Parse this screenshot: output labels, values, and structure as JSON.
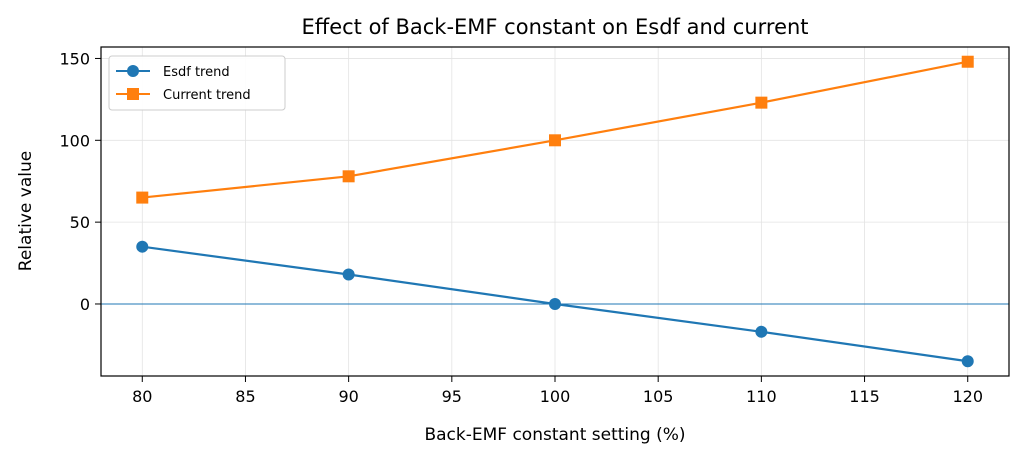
{
  "chart_data": {
    "type": "line",
    "title": "Effect of Back-EMF constant on Esdf and current",
    "xlabel": "Back-EMF constant setting (%)",
    "ylabel": "Relative value",
    "x": [
      80,
      90,
      100,
      110,
      120
    ],
    "xlim": [
      78,
      122
    ],
    "ylim": [
      -44,
      157
    ],
    "xticks": [
      80,
      85,
      90,
      95,
      100,
      105,
      110,
      115,
      120
    ],
    "yticks": [
      0,
      50,
      100,
      150
    ],
    "grid": true,
    "zero_line": 0,
    "legend_position": "top-left",
    "series": [
      {
        "name": "Esdf trend",
        "values": [
          35,
          18,
          0,
          -17,
          -35
        ],
        "color": "#1f77b4",
        "marker": "circle"
      },
      {
        "name": "Current trend",
        "values": [
          65,
          78,
          100,
          123,
          148
        ],
        "color": "#ff7f0e",
        "marker": "square"
      }
    ]
  }
}
